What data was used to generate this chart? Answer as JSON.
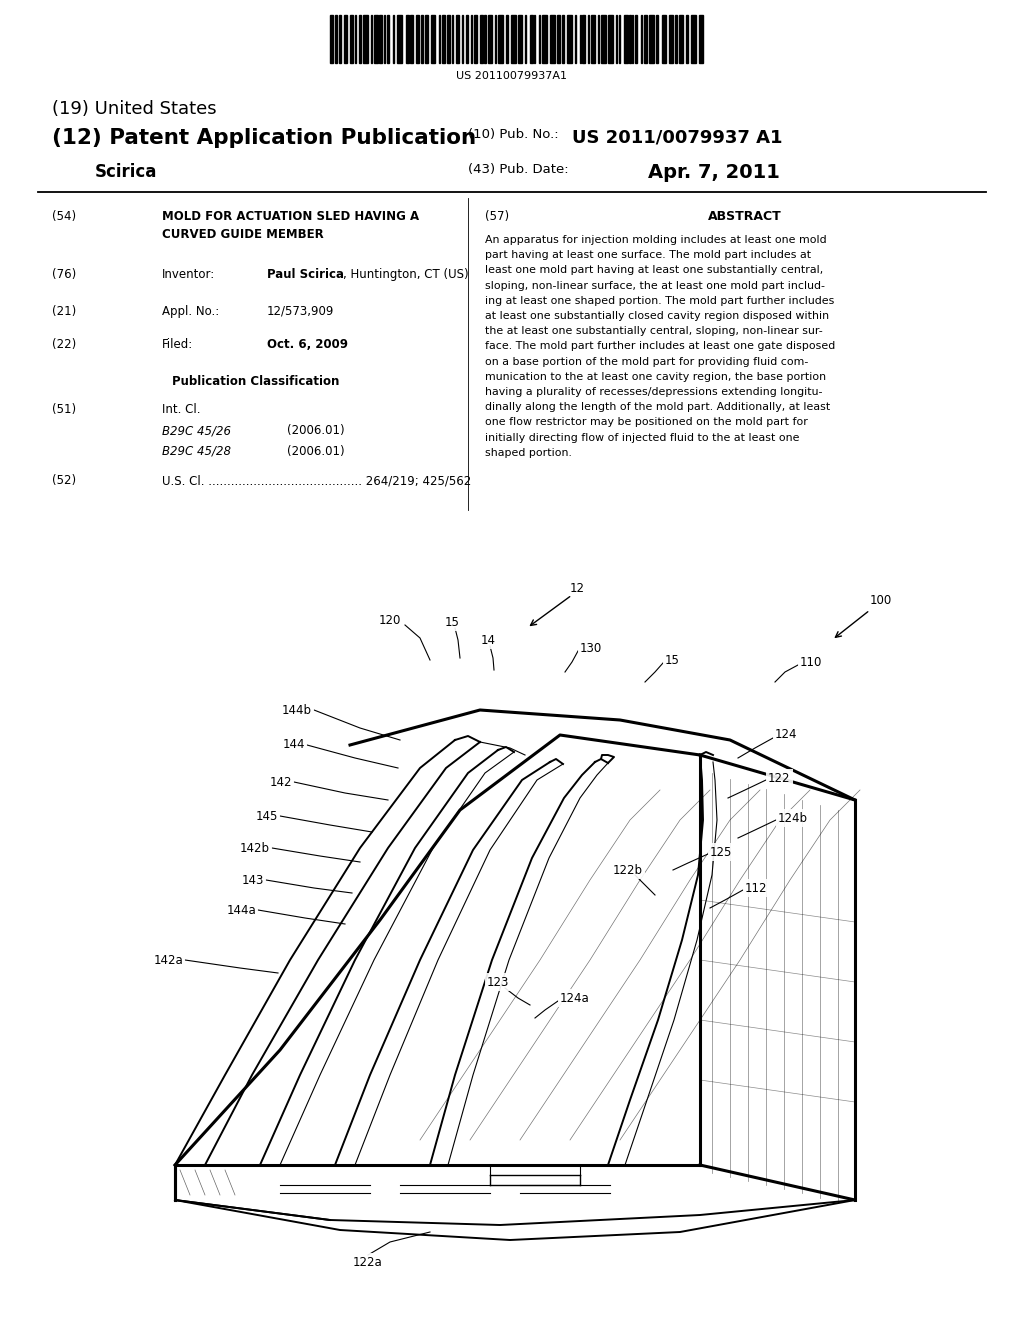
{
  "bg_color": "#ffffff",
  "text_color": "#000000",
  "barcode_text": "US 20110079937A1",
  "nation": "(19) United States",
  "doc_type": "(12) Patent Application Publication",
  "doc_author": "Scirica",
  "pub_no_label": "(10) Pub. No.:",
  "pub_no": "US 2011/0079937 A1",
  "pub_date_label": "(43) Pub. Date:",
  "pub_date": "Apr. 7, 2011",
  "title_tag": "(54)",
  "title_line1": "MOLD FOR ACTUATION SLED HAVING A",
  "title_line2": "CURVED GUIDE MEMBER",
  "inv_tag": "(76)",
  "inv_label": "Inventor:",
  "inv_name": "Paul Scirica",
  "inv_loc": ", Huntington, CT (US)",
  "appl_tag": "(21)",
  "appl_label": "Appl. No.:",
  "appl_no": "12/573,909",
  "filed_tag": "(22)",
  "filed_label": "Filed:",
  "filed_date": "Oct. 6, 2009",
  "pubclass_header": "Publication Classification",
  "intcl_tag": "(51)",
  "intcl_label": "Int. Cl.",
  "intcl1": "B29C 45/26",
  "intcl1_yr": "(2006.01)",
  "intcl2": "B29C 45/28",
  "intcl2_yr": "(2006.01)",
  "uscl_tag": "(52)",
  "uscl_text": "U.S. Cl. ......................................... 264/219; 425/562",
  "abs_tag": "(57)",
  "abs_header": "ABSTRACT",
  "abs_text": "An apparatus for injection molding includes at least one mold part having at least one surface. The mold part includes at least one mold part having at least one substantially central, sloping, non-linear surface, the at least one mold part includ-ing at least one shaped portion. The mold part further includes at least one substantially closed cavity region disposed within the at least one substantially central, sloping, non-linear sur-face. The mold part further includes at least one gate disposed on a base portion of the mold part for providing fluid com-munication to the at least one cavity region, the base portion having a plurality of recesses/depressions extending longitu-dinally along the length of the mold part. Additionally, at least one flow restrictor may be positioned on the mold part for initially directing flow of injected fluid to the at least one shaped portion."
}
